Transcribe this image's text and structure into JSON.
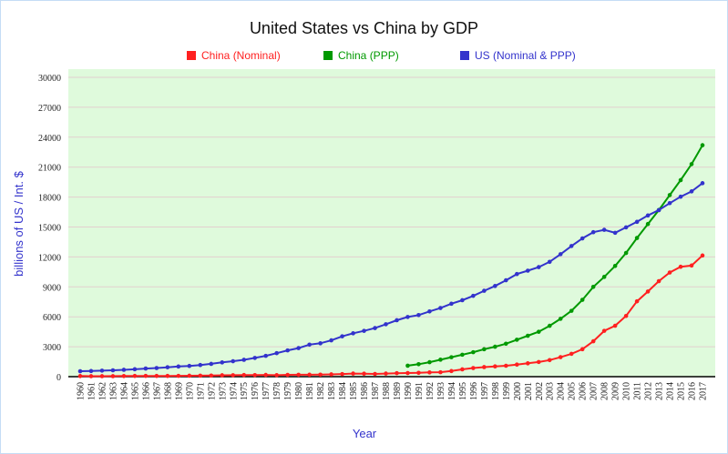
{
  "chart_data": {
    "type": "line",
    "title": "United States vs China by GDP",
    "xlabel": "Year",
    "ylabel": "billions of US / Int. $",
    "ylim": [
      0,
      30000
    ],
    "yticks": [
      0,
      3000,
      6000,
      9000,
      12000,
      15000,
      18000,
      21000,
      24000,
      27000,
      30000
    ],
    "grid": true,
    "legend_position": "top",
    "plot_background": "#dffadc",
    "x": [
      1960,
      1961,
      1962,
      1963,
      1964,
      1965,
      1966,
      1967,
      1968,
      1969,
      1970,
      1971,
      1972,
      1973,
      1974,
      1975,
      1976,
      1977,
      1978,
      1979,
      1980,
      1981,
      1982,
      1983,
      1984,
      1985,
      1986,
      1987,
      1988,
      1989,
      1990,
      1991,
      1992,
      1993,
      1994,
      1995,
      1996,
      1997,
      1998,
      1999,
      2000,
      2001,
      2002,
      2003,
      2004,
      2005,
      2006,
      2007,
      2008,
      2009,
      2010,
      2011,
      2012,
      2013,
      2014,
      2015,
      2016,
      2017
    ],
    "series": [
      {
        "name": "China (Nominal)",
        "color": "#ff2020",
        "values": [
          60,
          50,
          47,
          51,
          60,
          70,
          77,
          73,
          70,
          79,
          93,
          100,
          114,
          139,
          144,
          163,
          154,
          175,
          150,
          178,
          191,
          196,
          205,
          230,
          260,
          309,
          301,
          273,
          312,
          348,
          361,
          383,
          427,
          445,
          564,
          734,
          864,
          962,
          1029,
          1094,
          1211,
          1339,
          1471,
          1660,
          1955,
          2286,
          2752,
          3550,
          4594,
          5102,
          6087,
          7552,
          8532,
          9570,
          10439,
          11016,
          11138,
          12143
        ]
      },
      {
        "name": "China (PPP)",
        "color": "#009900",
        "values": [
          null,
          null,
          null,
          null,
          null,
          null,
          null,
          null,
          null,
          null,
          null,
          null,
          null,
          null,
          null,
          null,
          null,
          null,
          null,
          null,
          null,
          null,
          null,
          null,
          null,
          null,
          null,
          null,
          null,
          null,
          1100,
          1250,
          1450,
          1700,
          1950,
          2200,
          2450,
          2750,
          3000,
          3300,
          3700,
          4100,
          4500,
          5100,
          5800,
          6600,
          7700,
          9000,
          10000,
          11100,
          12400,
          13900,
          15300,
          16700,
          18200,
          19700,
          21300,
          23200
        ]
      },
      {
        "name": "US (Nominal & PPP)",
        "color": "#3333cc",
        "values": [
          543,
          563,
          605,
          638,
          686,
          743,
          815,
          862,
          943,
          1019,
          1075,
          1168,
          1282,
          1429,
          1549,
          1689,
          1878,
          2086,
          2357,
          2632,
          2863,
          3211,
          3345,
          3638,
          4041,
          4347,
          4590,
          4870,
          5253,
          5658,
          5980,
          6174,
          6539,
          6879,
          7309,
          7664,
          8100,
          8609,
          9089,
          9661,
          10285,
          10622,
          10978,
          11511,
          12275,
          13094,
          13856,
          14478,
          14719,
          14419,
          14964,
          15518,
          16155,
          16692,
          17393,
          18037,
          18569,
          19391
        ]
      }
    ]
  }
}
